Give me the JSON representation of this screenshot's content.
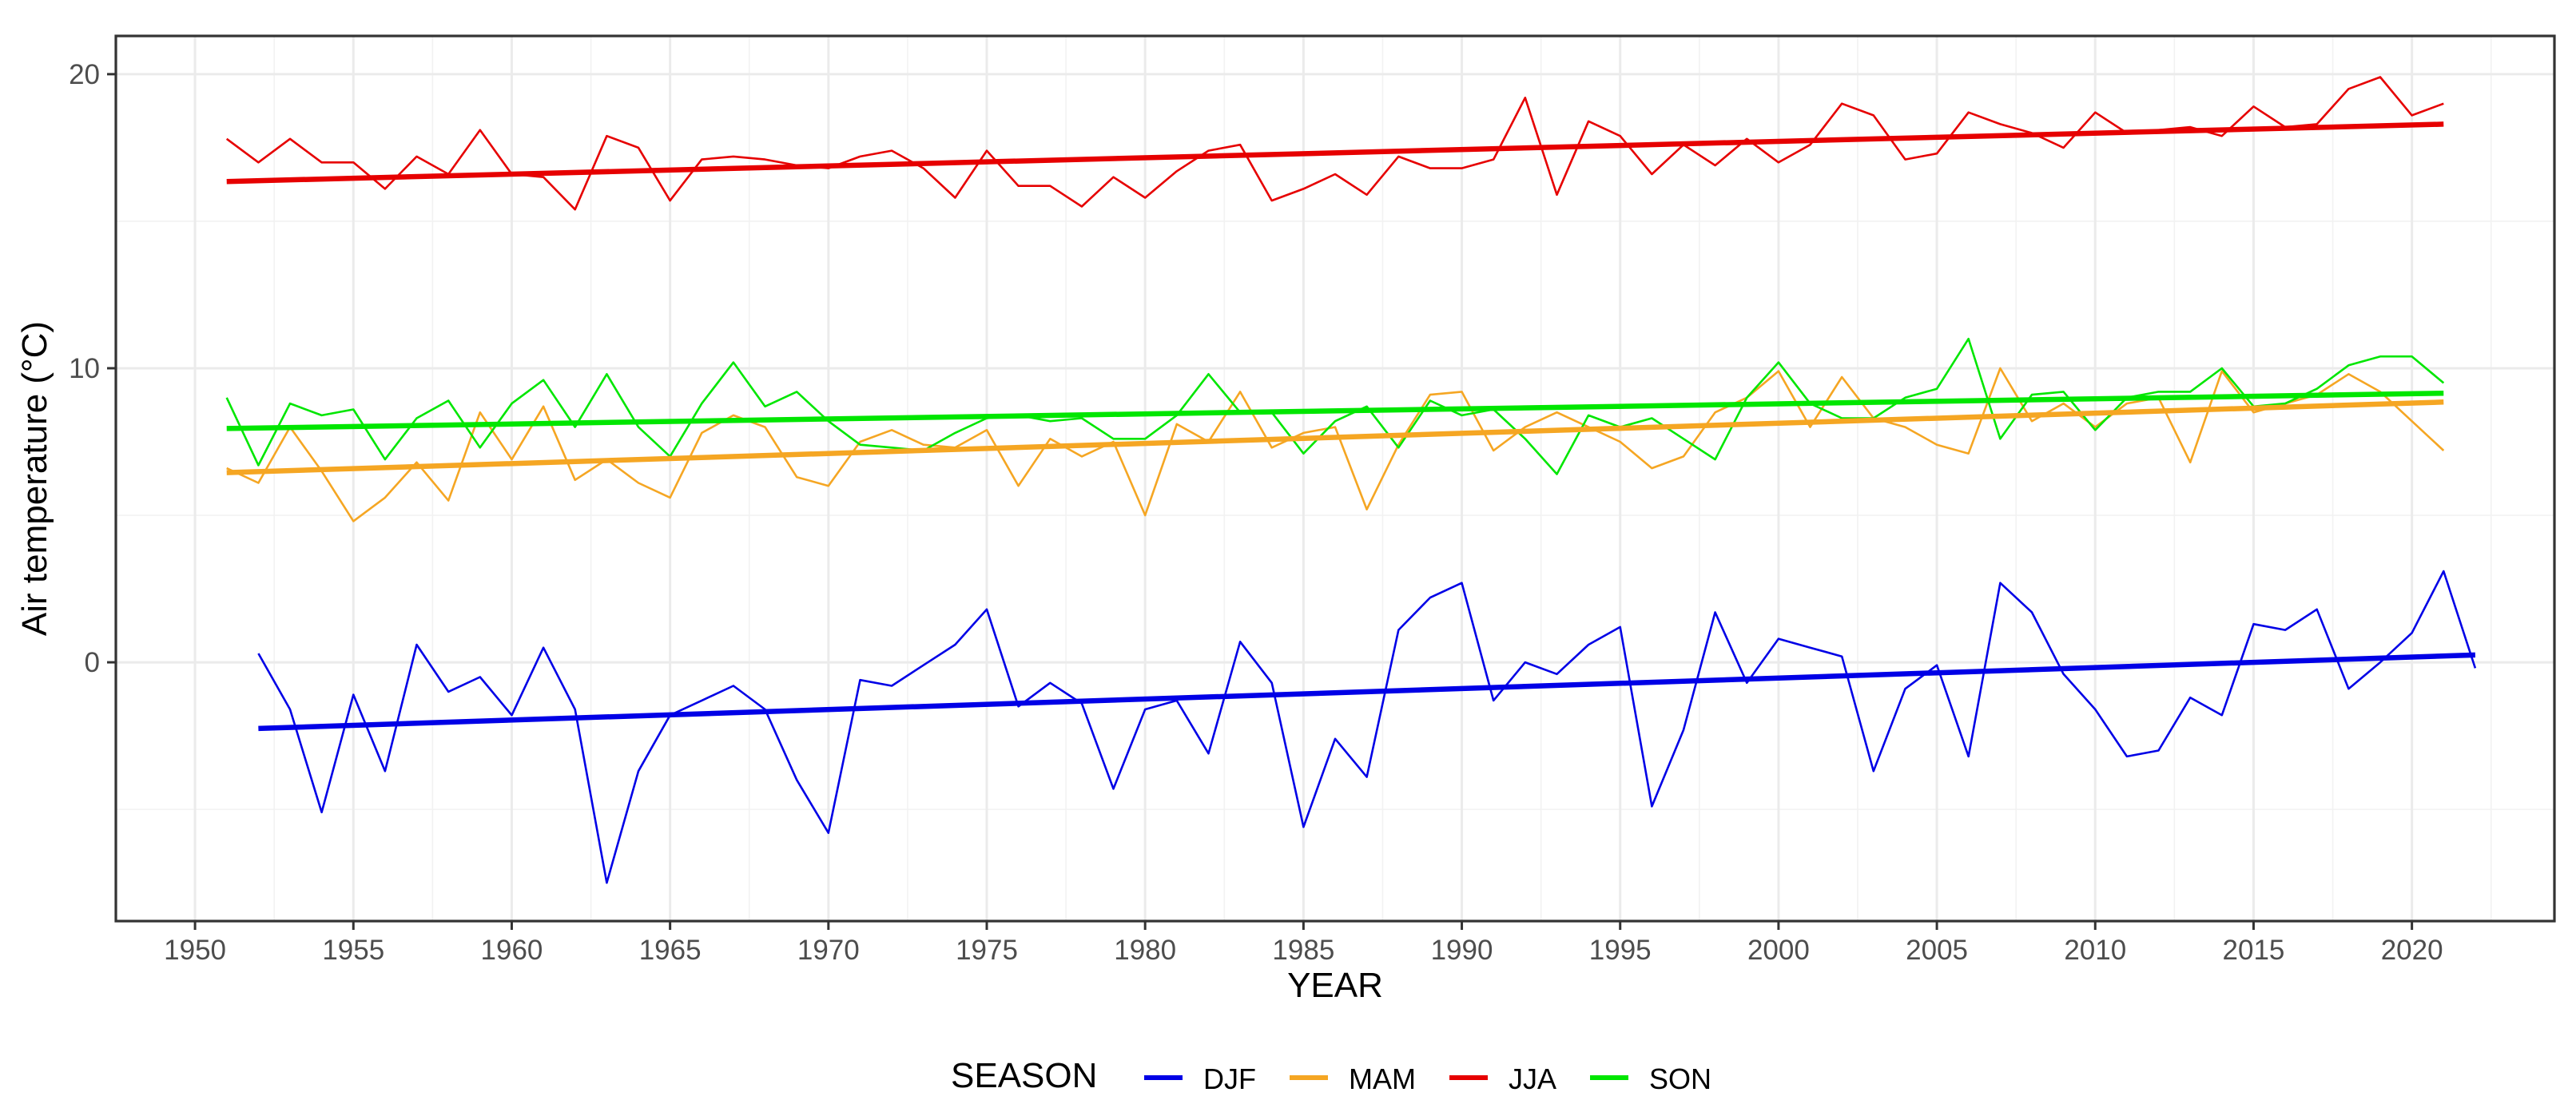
{
  "chart_data": {
    "type": "line",
    "title": "",
    "xlabel": "YEAR",
    "ylabel": "Air temperature (°C)",
    "xlim": [
      1947.5,
      2024.5
    ],
    "ylim": [
      -8.8,
      21.3
    ],
    "x_ticks": [
      1950,
      1955,
      1960,
      1965,
      1970,
      1975,
      1980,
      1985,
      1990,
      1995,
      2000,
      2005,
      2010,
      2015,
      2020
    ],
    "x_tick_labels": [
      "1950",
      "1955",
      "1960",
      "1965",
      "1970",
      "1975",
      "1980",
      "1985",
      "1990",
      "1995",
      "2000",
      "2005",
      "2010",
      "2015",
      "2020"
    ],
    "y_ticks": [
      0,
      10,
      20
    ],
    "y_tick_labels": [
      "0",
      "10",
      "20"
    ],
    "grid": true,
    "legend": {
      "title": "SEASON",
      "position": "bottom",
      "entries": [
        "DJF",
        "MAM",
        "JJA",
        "SON"
      ]
    },
    "series": [
      {
        "name": "DJF",
        "color": "#0000e6",
        "start_year": 1952,
        "values": [
          0.3,
          -1.6,
          -5.1,
          -1.1,
          -3.7,
          0.6,
          -1.0,
          -0.5,
          -1.8,
          0.5,
          -1.6,
          -7.5,
          -3.7,
          -1.8,
          -1.3,
          -0.8,
          -1.6,
          -4.0,
          -5.8,
          -0.6,
          -0.8,
          -0.1,
          0.6,
          1.8,
          -1.5,
          -0.7,
          -1.4,
          -4.3,
          -1.6,
          -1.3,
          -3.1,
          0.7,
          -0.7,
          -5.6,
          -2.6,
          -3.9,
          1.1,
          2.2,
          2.7,
          -1.3,
          0.0,
          -0.4,
          0.6,
          1.2,
          -4.9,
          -2.3,
          1.7,
          -0.7,
          0.8,
          0.5,
          0.2,
          -3.7,
          -0.9,
          -0.1,
          -3.2,
          2.7,
          1.7,
          -0.4,
          -1.6,
          -3.2,
          -3.0,
          -1.2,
          -1.8,
          1.3,
          1.1,
          1.8,
          -0.9,
          -0.0,
          1.0,
          3.1,
          -0.2
        ],
        "trend": [
          -2.25,
          0.25
        ]
      },
      {
        "name": "MAM",
        "color": "#f5a623",
        "start_year": 1951,
        "values": [
          6.6,
          6.1,
          8.0,
          6.5,
          4.8,
          5.6,
          6.8,
          5.5,
          8.5,
          6.9,
          8.7,
          6.2,
          6.9,
          6.1,
          5.6,
          7.8,
          8.4,
          8.0,
          6.3,
          6.0,
          7.5,
          7.9,
          7.4,
          7.3,
          7.9,
          6.0,
          7.6,
          7.0,
          7.5,
          5.0,
          8.1,
          7.5,
          9.2,
          7.3,
          7.8,
          8.0,
          5.2,
          7.4,
          9.1,
          9.2,
          7.2,
          8.0,
          8.5,
          8.0,
          7.5,
          6.6,
          7.0,
          8.5,
          9.0,
          9.9,
          8.0,
          9.7,
          8.3,
          8.0,
          7.4,
          7.1,
          10.0,
          8.2,
          8.8,
          8.0,
          8.8,
          9.0,
          6.8,
          9.9,
          8.5,
          8.8,
          9.1,
          9.8,
          9.2,
          8.2,
          7.2
        ],
        "trend": [
          6.45,
          8.85
        ]
      },
      {
        "name": "JJA",
        "color": "#e60000",
        "start_year": 1951,
        "values": [
          17.8,
          17.0,
          17.8,
          17.0,
          17.0,
          16.1,
          17.2,
          16.6,
          18.1,
          16.6,
          16.5,
          15.4,
          17.9,
          17.5,
          15.7,
          17.1,
          17.2,
          17.1,
          16.9,
          16.8,
          17.2,
          17.4,
          16.8,
          15.8,
          17.4,
          16.2,
          16.2,
          15.5,
          16.5,
          15.8,
          16.7,
          17.4,
          17.6,
          15.7,
          16.1,
          16.6,
          15.9,
          17.2,
          16.8,
          16.8,
          17.1,
          19.2,
          15.9,
          18.4,
          17.9,
          16.6,
          17.6,
          16.9,
          17.8,
          17.0,
          17.6,
          19.0,
          18.6,
          17.1,
          17.3,
          18.7,
          18.3,
          18.0,
          17.5,
          18.7,
          18.0,
          18.1,
          18.2,
          17.9,
          18.9,
          18.2,
          18.3,
          19.5,
          19.9,
          18.6,
          19.0
        ],
        "trend": [
          16.35,
          18.3
        ]
      },
      {
        "name": "SON",
        "color": "#00e600",
        "start_year": 1951,
        "values": [
          9.0,
          6.7,
          8.8,
          8.4,
          8.6,
          6.9,
          8.3,
          8.9,
          7.3,
          8.8,
          9.6,
          8.0,
          9.8,
          8.0,
          7.0,
          8.8,
          10.2,
          8.7,
          9.2,
          8.2,
          7.4,
          7.3,
          7.2,
          7.8,
          8.3,
          8.4,
          8.2,
          8.3,
          7.6,
          7.6,
          8.4,
          9.8,
          8.5,
          8.5,
          7.1,
          8.2,
          8.7,
          7.3,
          8.9,
          8.4,
          8.6,
          7.6,
          6.4,
          8.4,
          8.0,
          8.3,
          7.6,
          6.9,
          9.0,
          10.2,
          8.8,
          8.3,
          8.3,
          9.0,
          9.3,
          11.0,
          7.6,
          9.1,
          9.2,
          7.9,
          9.0,
          9.2,
          9.2,
          10.0,
          8.7,
          8.8,
          9.3,
          10.1,
          10.4,
          10.4,
          9.5
        ],
        "trend": [
          7.95,
          9.15
        ]
      }
    ]
  }
}
